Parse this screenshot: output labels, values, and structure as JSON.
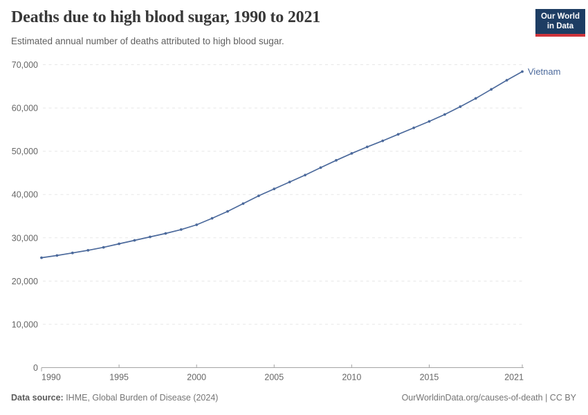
{
  "header": {
    "title": "Deaths due to high blood sugar, 1990 to 2021",
    "subtitle": "Estimated annual number of deaths attributed to high blood sugar.",
    "logo": {
      "line1": "Our World",
      "line2": "in Data",
      "bg_color": "#1d3d63",
      "bar_color": "#cf343b"
    }
  },
  "chart_data": {
    "type": "line",
    "title": "Deaths due to high blood sugar, 1990 to 2021",
    "xlabel": "",
    "ylabel": "",
    "xlim": [
      1990,
      2021
    ],
    "ylim": [
      0,
      70000
    ],
    "grid": "horizontal-dashed",
    "x_ticks": [
      1990,
      1995,
      2000,
      2005,
      2010,
      2015,
      2021
    ],
    "y_ticks": [
      0,
      10000,
      20000,
      30000,
      40000,
      50000,
      60000,
      70000
    ],
    "series": [
      {
        "name": "Vietnam",
        "color": "#4C6A9C",
        "end_label": "Vietnam",
        "x": [
          1990,
          1991,
          1992,
          1993,
          1994,
          1995,
          1996,
          1997,
          1998,
          1999,
          2000,
          2001,
          2002,
          2003,
          2004,
          2005,
          2006,
          2007,
          2008,
          2009,
          2010,
          2011,
          2012,
          2013,
          2014,
          2015,
          2016,
          2017,
          2018,
          2019,
          2020,
          2021
        ],
        "values": [
          25400,
          25900,
          26500,
          27100,
          27800,
          28600,
          29400,
          30200,
          31000,
          31900,
          33000,
          34500,
          36100,
          37900,
          39700,
          41300,
          42900,
          44500,
          46200,
          47900,
          49500,
          51000,
          52400,
          53900,
          55400,
          56900,
          58500,
          60300,
          62200,
          64300,
          66400,
          68400
        ]
      }
    ]
  },
  "footer": {
    "source_label": "Data source:",
    "source_text": " IHME, Global Burden of Disease (2024)",
    "attribution": "OurWorldinData.org/causes-of-death | CC BY"
  }
}
